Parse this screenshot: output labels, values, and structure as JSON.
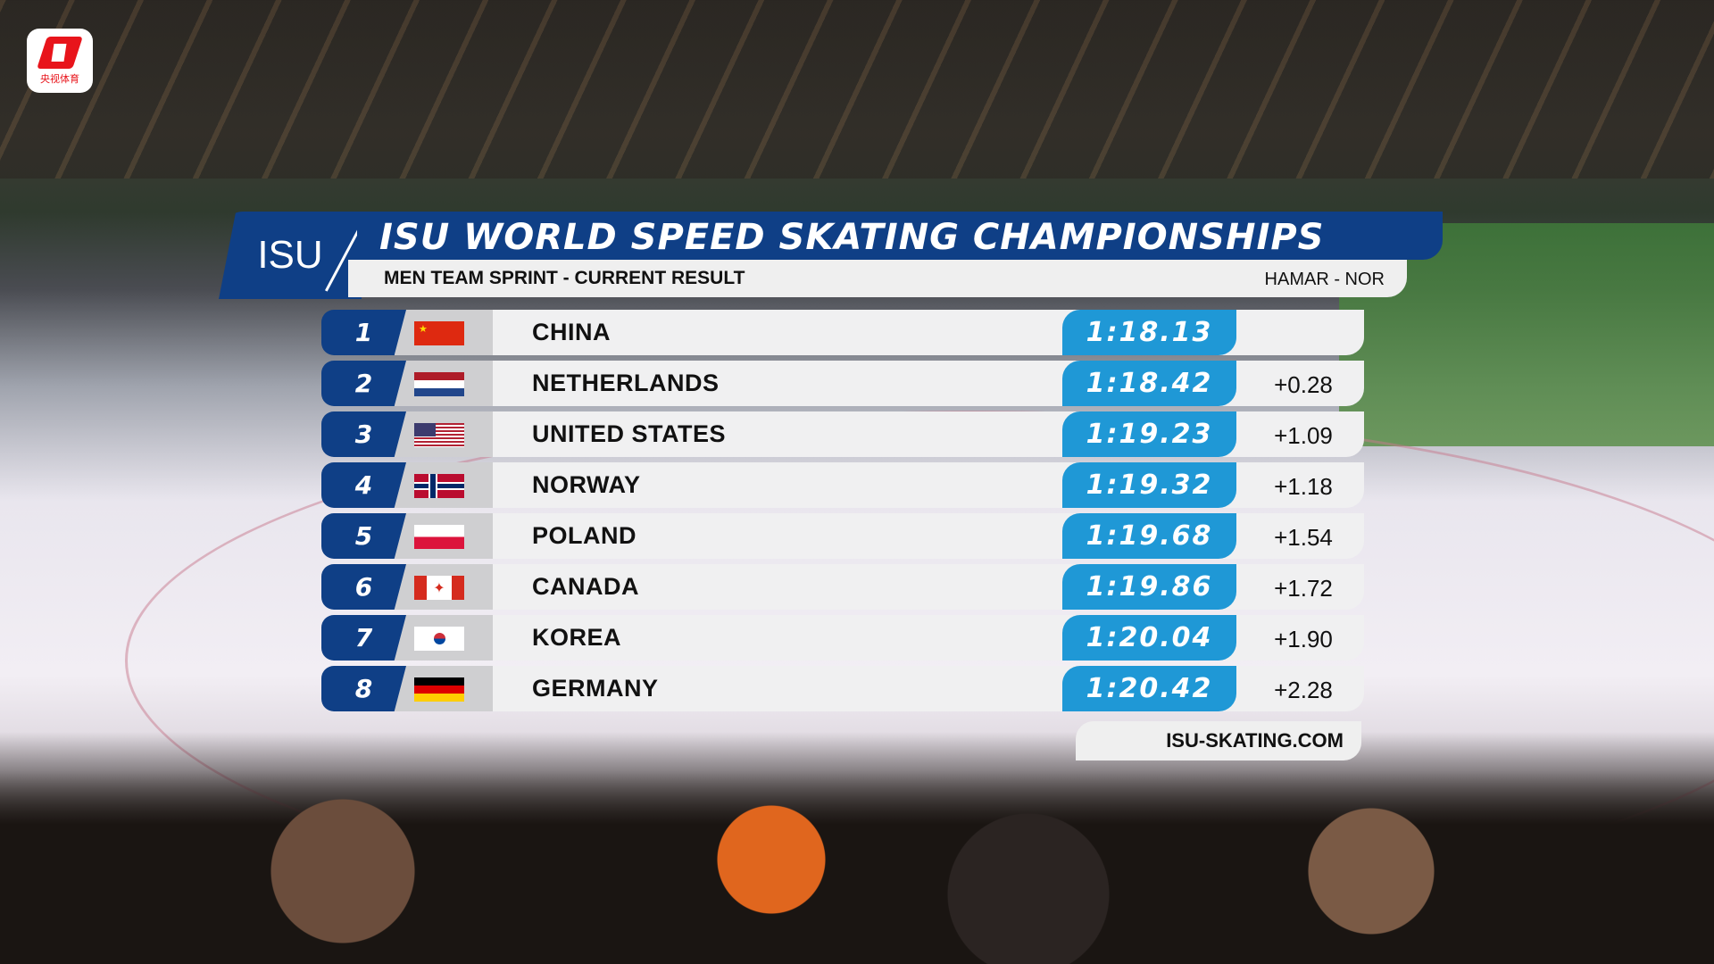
{
  "broadcaster": {
    "logo_text": "央视体育",
    "color": "#e8141b"
  },
  "header": {
    "logo": "ISU",
    "title": "ISU WORLD SPEED SKATING CHAMPIONSHIPS",
    "subtitle": "MEN TEAM SPRINT  - CURRENT RESULT",
    "location": "HAMAR - NOR"
  },
  "colors": {
    "navy": "#0f3f86",
    "time_blue": "#1f98d6"
  },
  "results": [
    {
      "rank": "1",
      "country": "CHINA",
      "flag": "china-flag",
      "time": "1:18.13",
      "gap": ""
    },
    {
      "rank": "2",
      "country": "NETHERLANDS",
      "flag": "netherlands-flag",
      "time": "1:18.42",
      "gap": "+0.28"
    },
    {
      "rank": "3",
      "country": "UNITED STATES",
      "flag": "usa-flag",
      "time": "1:19.23",
      "gap": "+1.09"
    },
    {
      "rank": "4",
      "country": "NORWAY",
      "flag": "norway-flag",
      "time": "1:19.32",
      "gap": "+1.18"
    },
    {
      "rank": "5",
      "country": "POLAND",
      "flag": "poland-flag",
      "time": "1:19.68",
      "gap": "+1.54"
    },
    {
      "rank": "6",
      "country": "CANADA",
      "flag": "canada-flag",
      "time": "1:19.86",
      "gap": "+1.72"
    },
    {
      "rank": "7",
      "country": "KOREA",
      "flag": "korea-flag",
      "time": "1:20.04",
      "gap": "+1.90"
    },
    {
      "rank": "8",
      "country": "GERMANY",
      "flag": "germany-flag",
      "time": "1:20.42",
      "gap": "+2.28"
    }
  ],
  "footer": {
    "website": "ISU-SKATING.COM"
  }
}
